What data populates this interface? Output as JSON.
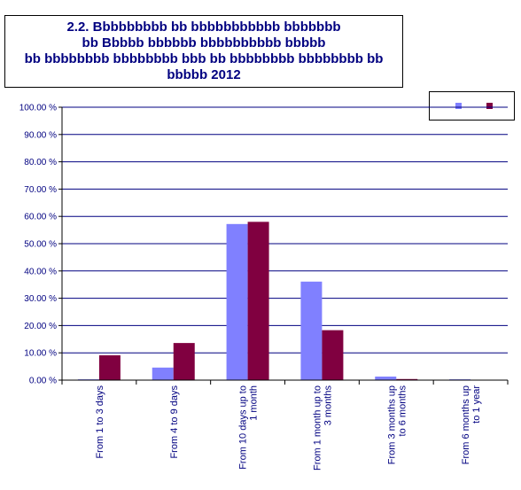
{
  "chart_data": {
    "type": "bar",
    "title": "2.2. Bbbbbbbbb bb bbbbbbbbbbb bbbbbbb\nbb Bbbbb bbbbbb bbbbbbbbbb bbbbb\nbb bbbbbbbb bbbbbbbb bbb bb bbbbbbbb bbbbbbbb bb\nbbbbb 2012",
    "categories": [
      [
        "From 1 to 3 days"
      ],
      [
        "From 4 to 9 days"
      ],
      [
        "From 10 days up to",
        "1 month"
      ],
      [
        "From 1 month up to",
        "3 months"
      ],
      [
        "From 3 months up",
        "to 6 months"
      ],
      [
        "From 6 months up",
        "to 1 year"
      ]
    ],
    "series": [
      {
        "values": [
          0.3,
          4.6,
          57.2,
          36.1,
          1.3,
          0.3
        ],
        "color": "#8080ff"
      },
      {
        "values": [
          9.1,
          13.6,
          58.0,
          18.3,
          0.4,
          0.0
        ],
        "color": "#800040"
      }
    ],
    "yticks": [
      "0.00 %",
      "10.00 %",
      "20.00 %",
      "30.00 %",
      "40.00 %",
      "50.00 %",
      "60.00 %",
      "70.00 %",
      "80.00 %",
      "90.00 %",
      "100.00 %"
    ],
    "ylim": [
      0,
      100
    ],
    "grid": true,
    "legend": "top-right",
    "colors": {
      "gridline": "#000080",
      "text": "#000080"
    }
  }
}
